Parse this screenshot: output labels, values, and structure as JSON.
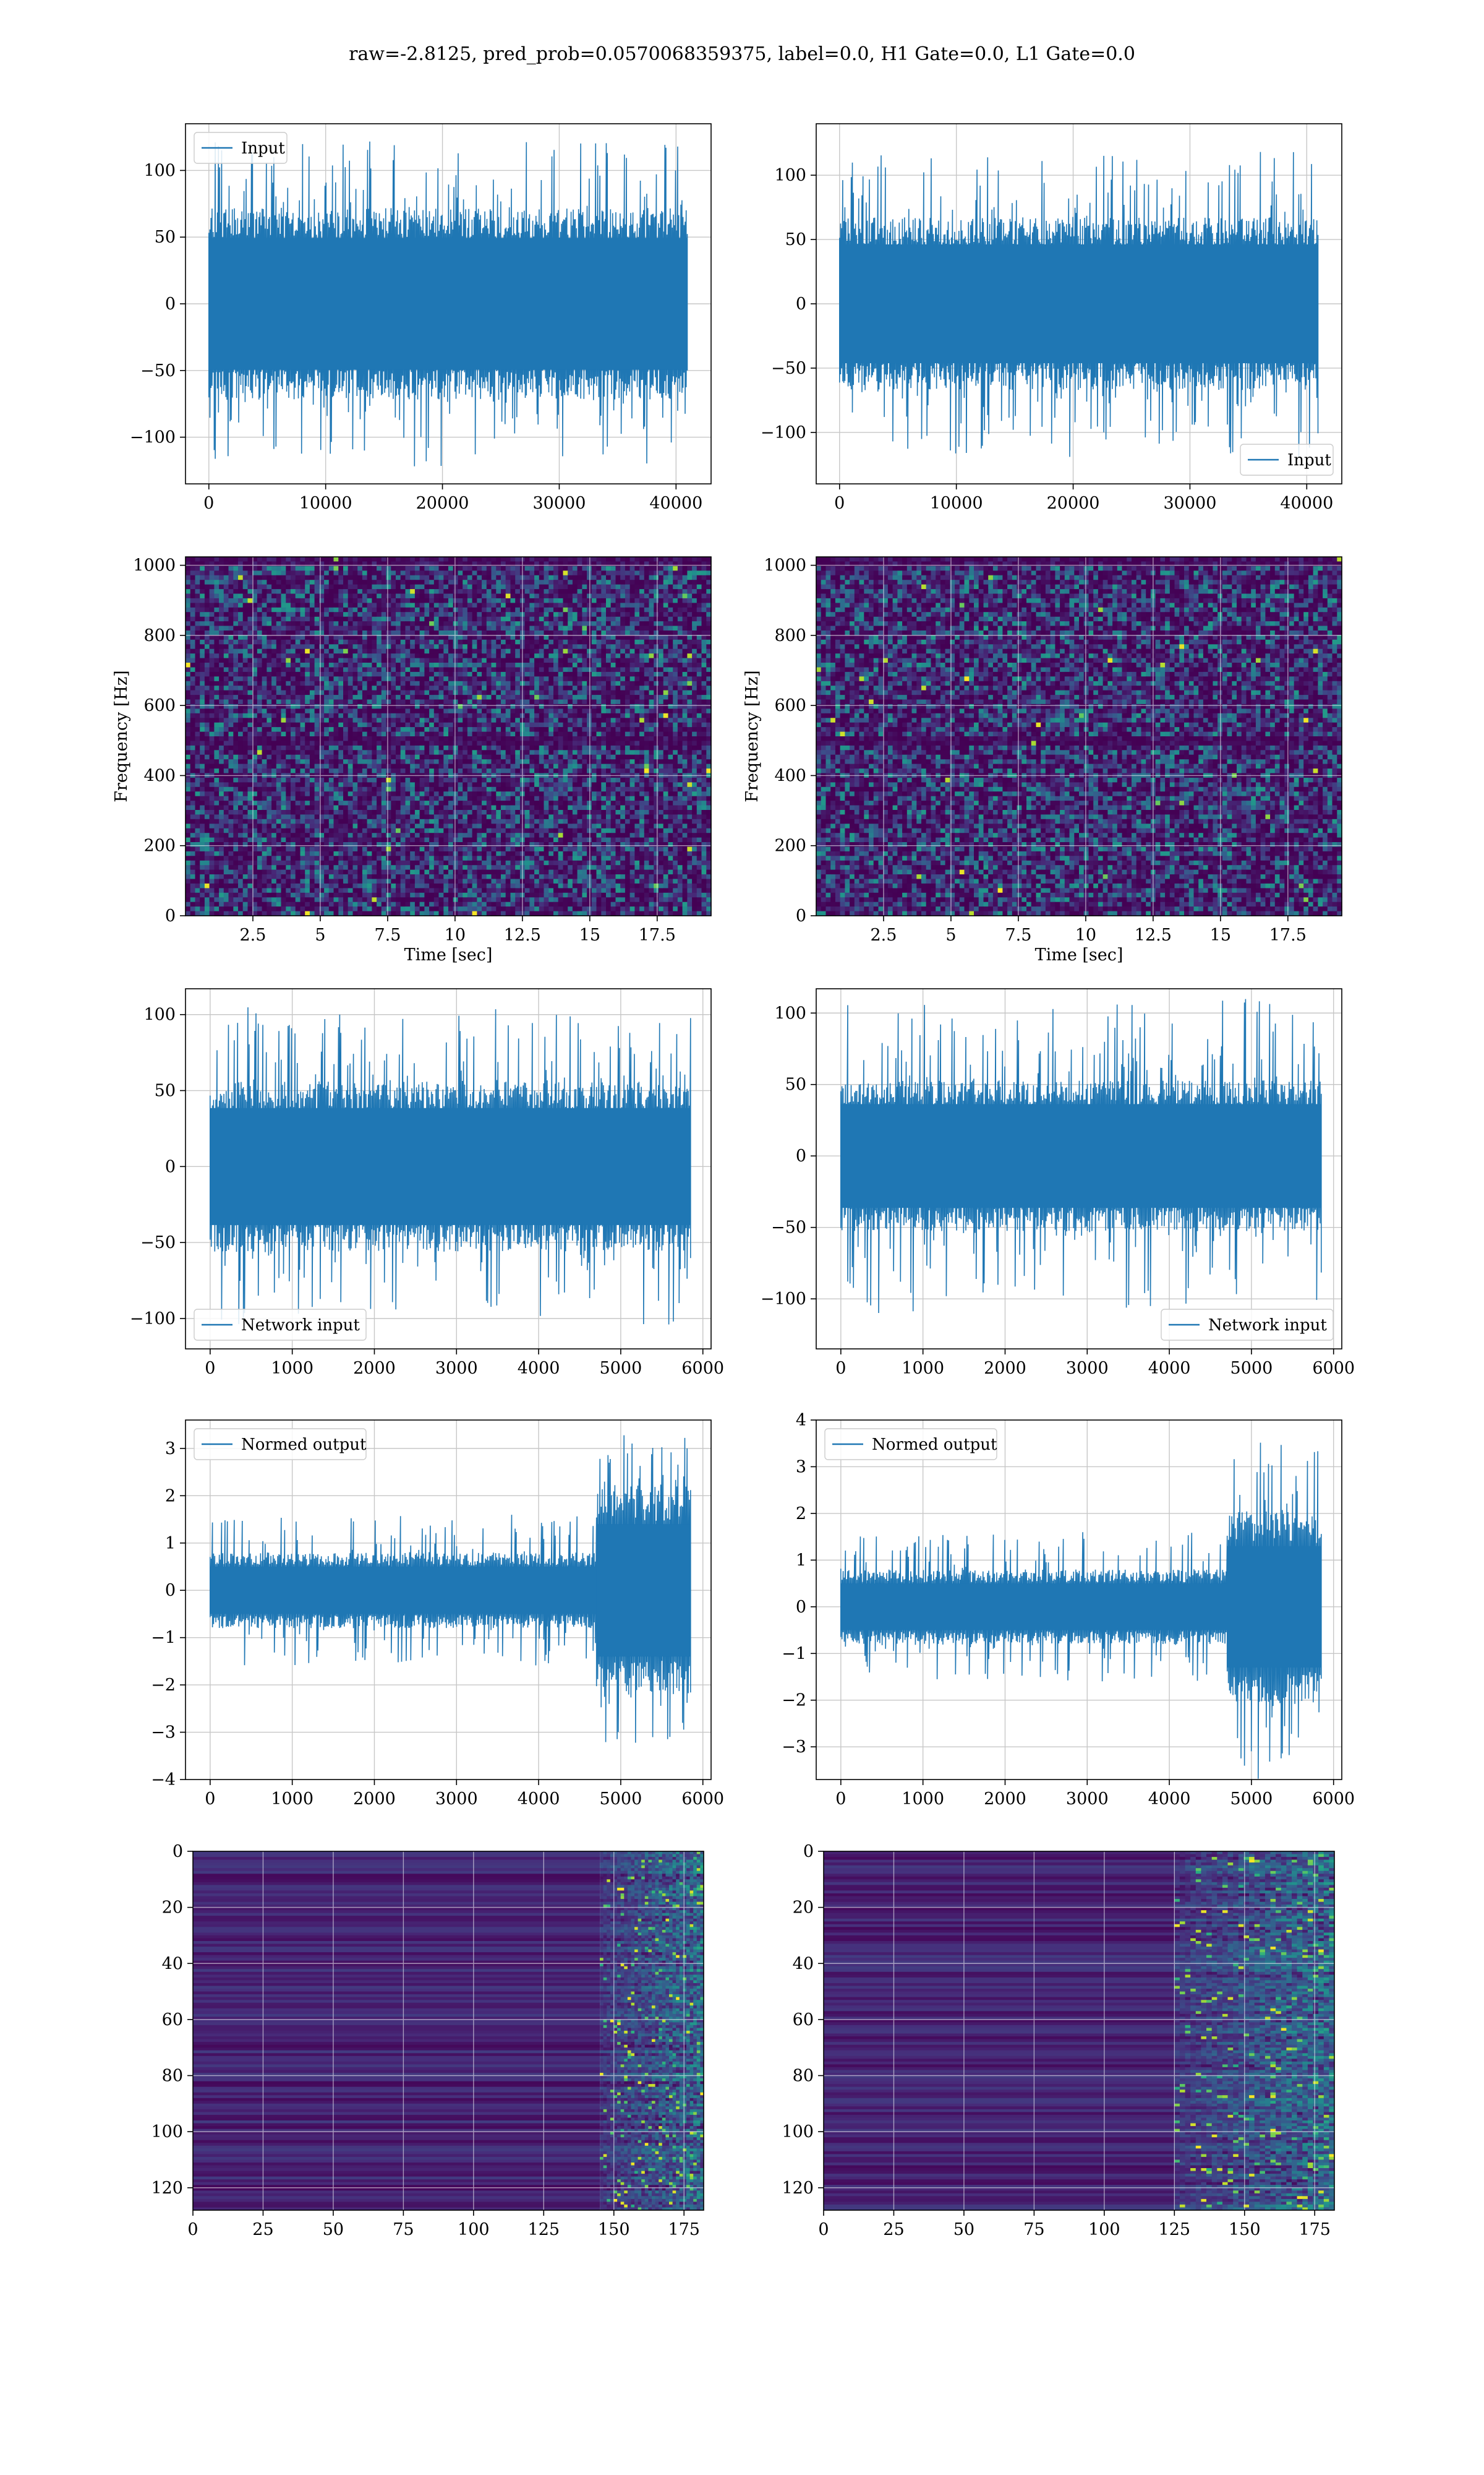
{
  "suptitle": "raw=-2.8125, pred_prob=0.0570068359375, label=0.0, H1 Gate=0.0, L1 Gate=0.0",
  "colors": {
    "line": "#1f77b4",
    "grid": "#b0b0b0",
    "viridis_dark": "#440154",
    "viridis_bright": "#fde725"
  },
  "chart_data": [
    {
      "id": "raw-h1",
      "type": "line",
      "legend": "Input",
      "legend_loc": "upper left",
      "grid": true,
      "xlim": [
        -2000,
        43000
      ],
      "ylim": [
        -135,
        135
      ],
      "xticks": [
        0,
        10000,
        20000,
        30000,
        40000
      ],
      "yticks": [
        -100,
        -50,
        0,
        50,
        100
      ],
      "signal": {
        "x_range": [
          0,
          40960
        ],
        "amplitude": 45,
        "peak": 122,
        "n_samples": 450
      }
    },
    {
      "id": "raw-l1",
      "type": "line",
      "legend": "Input",
      "legend_loc": "lower right",
      "grid": true,
      "xlim": [
        -2000,
        43000
      ],
      "ylim": [
        -140,
        140
      ],
      "xticks": [
        0,
        10000,
        20000,
        30000,
        40000
      ],
      "yticks": [
        -100,
        -50,
        0,
        50,
        100
      ],
      "signal": {
        "x_range": [
          0,
          40960
        ],
        "amplitude": 42,
        "peak": 120,
        "n_samples": 450
      }
    },
    {
      "id": "spec-h1",
      "type": "heatmap",
      "grid": true,
      "xlabel": "Time [sec]",
      "ylabel": "Frequency [Hz]",
      "xlim": [
        0,
        19.5
      ],
      "ylim": [
        0,
        1024
      ],
      "xticks": [
        2.5,
        5.0,
        7.5,
        10.0,
        12.5,
        15.0,
        17.5
      ],
      "yticks": [
        0,
        200,
        400,
        600,
        800,
        1000
      ],
      "dark_bands_hz": [
        500,
        1010
      ],
      "colormap": "viridis"
    },
    {
      "id": "spec-l1",
      "type": "heatmap",
      "grid": true,
      "xlabel": "Time [sec]",
      "ylabel": "Frequency [Hz]",
      "xlim": [
        0,
        19.5
      ],
      "ylim": [
        0,
        1024
      ],
      "xticks": [
        2.5,
        5.0,
        7.5,
        10.0,
        12.5,
        15.0,
        17.5
      ],
      "yticks": [
        0,
        200,
        400,
        600,
        800,
        1000
      ],
      "dark_bands_hz": [
        500,
        1010
      ],
      "colormap": "viridis"
    },
    {
      "id": "net-h1",
      "type": "line",
      "legend": "Network input",
      "legend_loc": "lower left",
      "grid": true,
      "xlim": [
        -300,
        6100
      ],
      "ylim": [
        -120,
        117
      ],
      "xticks": [
        0,
        1000,
        2000,
        3000,
        4000,
        5000,
        6000
      ],
      "yticks": [
        -100,
        -50,
        0,
        50,
        100
      ],
      "signal": {
        "x_range": [
          0,
          5850
        ],
        "amplitude": 35,
        "peak": 105,
        "n_samples": 420
      }
    },
    {
      "id": "net-l1",
      "type": "line",
      "legend": "Network input",
      "legend_loc": "lower right",
      "grid": true,
      "xlim": [
        -300,
        6100
      ],
      "ylim": [
        -135,
        117
      ],
      "xticks": [
        0,
        1000,
        2000,
        3000,
        4000,
        5000,
        6000
      ],
      "yticks": [
        -100,
        -50,
        0,
        50,
        100
      ],
      "signal": {
        "x_range": [
          0,
          5850
        ],
        "amplitude": 33,
        "peak": 110,
        "n_samples": 420
      }
    },
    {
      "id": "norm-h1",
      "type": "line",
      "legend": "Normed output",
      "legend_loc": "upper left",
      "grid": true,
      "xlim": [
        -300,
        6100
      ],
      "ylim": [
        -4.0,
        3.6
      ],
      "xticks": [
        0,
        1000,
        2000,
        3000,
        4000,
        5000,
        6000
      ],
      "yticks": [
        -4,
        -3,
        -2,
        -1,
        0,
        1,
        2,
        3
      ],
      "signal": {
        "x_range": [
          0,
          5850
        ],
        "amplitude": 0.5,
        "peak": 1.6,
        "burst_start": 4700,
        "burst_amplitude": 1.4,
        "burst_peak": 3.3,
        "n_samples": 420
      }
    },
    {
      "id": "norm-l1",
      "type": "line",
      "legend": "Normed output",
      "legend_loc": "upper left",
      "grid": true,
      "xlim": [
        -300,
        6100
      ],
      "ylim": [
        -3.7,
        4.0
      ],
      "xticks": [
        0,
        1000,
        2000,
        3000,
        4000,
        5000,
        6000
      ],
      "yticks": [
        -3,
        -2,
        -1,
        0,
        1,
        2,
        3,
        4
      ],
      "signal": {
        "x_range": [
          0,
          5850
        ],
        "amplitude": 0.5,
        "peak": 1.6,
        "burst_start": 4700,
        "burst_amplitude": 1.3,
        "burst_peak": 3.7,
        "n_samples": 420
      }
    },
    {
      "id": "feat-h1",
      "type": "heatmap",
      "grid": true,
      "colormap": "viridis",
      "xlim": [
        0,
        182
      ],
      "ylim": [
        0,
        128
      ],
      "y_inverted": true,
      "xticks": [
        0,
        25,
        50,
        75,
        100,
        125,
        150,
        175
      ],
      "yticks": [
        0,
        20,
        40,
        60,
        80,
        100,
        120
      ],
      "active_cols": [
        145,
        182
      ]
    },
    {
      "id": "feat-l1",
      "type": "heatmap",
      "grid": true,
      "colormap": "viridis",
      "xlim": [
        0,
        182
      ],
      "ylim": [
        0,
        128
      ],
      "y_inverted": true,
      "xticks": [
        0,
        25,
        50,
        75,
        100,
        125,
        150,
        175
      ],
      "yticks": [
        0,
        20,
        40,
        60,
        80,
        100,
        120
      ],
      "active_cols": [
        125,
        182
      ]
    }
  ]
}
